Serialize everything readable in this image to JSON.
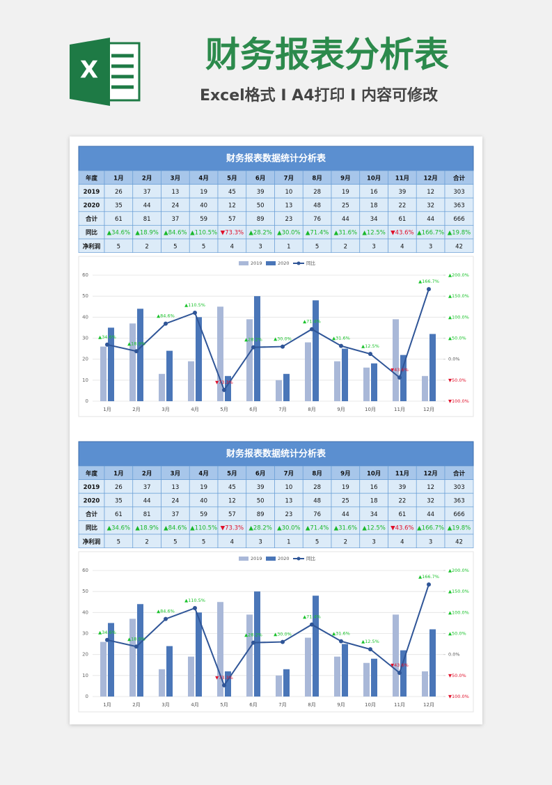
{
  "header": {
    "title": "财务报表分析表",
    "subtitle": "Excel格式 I A4打印 I 内容可修改"
  },
  "tables": [
    {
      "title": "财务报表数据统计分析表",
      "columns": [
        "年度",
        "1月",
        "2月",
        "3月",
        "4月",
        "5月",
        "6月",
        "7月",
        "8月",
        "9月",
        "10月",
        "11月",
        "12月",
        "合计"
      ],
      "rows": [
        [
          "2019",
          26,
          37,
          13,
          19,
          45,
          39,
          10,
          28,
          19,
          16,
          39,
          12,
          303
        ],
        [
          "2020",
          35,
          44,
          24,
          40,
          12,
          50,
          13,
          48,
          25,
          18,
          22,
          32,
          363
        ],
        [
          "合计",
          61,
          81,
          37,
          59,
          57,
          89,
          23,
          76,
          44,
          34,
          61,
          44,
          666
        ],
        [
          "同比",
          "▲34.6%",
          "▲18.9%",
          "▲84.6%",
          "▲110.5%",
          "▼73.3%",
          "▲28.2%",
          "▲30.0%",
          "▲71.4%",
          "▲31.6%",
          "▲12.5%",
          "▼43.6%",
          "▲166.7%",
          "▲19.8%"
        ],
        [
          "净利润",
          5,
          2,
          5,
          5,
          4,
          3,
          1,
          5,
          2,
          3,
          4,
          3,
          42
        ]
      ]
    },
    {
      "title": "财务报表数据统计分析表",
      "columns": [
        "年度",
        "1月",
        "2月",
        "3月",
        "4月",
        "5月",
        "6月",
        "7月",
        "8月",
        "9月",
        "10月",
        "11月",
        "12月",
        "合计"
      ],
      "rows": [
        [
          "2019",
          26,
          37,
          13,
          19,
          45,
          39,
          10,
          28,
          19,
          16,
          39,
          12,
          303
        ],
        [
          "2020",
          35,
          44,
          24,
          40,
          12,
          50,
          13,
          48,
          25,
          18,
          22,
          32,
          363
        ],
        [
          "合计",
          61,
          81,
          37,
          59,
          57,
          89,
          23,
          76,
          44,
          34,
          61,
          44,
          666
        ],
        [
          "同比",
          "▲34.6%",
          "▲18.9%",
          "▲84.6%",
          "▲110.5%",
          "▼73.3%",
          "▲28.2%",
          "▲30.0%",
          "▲71.4%",
          "▲31.6%",
          "▲12.5%",
          "▼43.6%",
          "▲166.7%",
          "▲19.8%"
        ],
        [
          "净利润",
          5,
          2,
          5,
          5,
          4,
          3,
          1,
          5,
          2,
          3,
          4,
          3,
          42
        ]
      ]
    }
  ],
  "chart_data": [
    {
      "type": "bar",
      "categories": [
        "1月",
        "2月",
        "3月",
        "4月",
        "5月",
        "6月",
        "7月",
        "8月",
        "9月",
        "10月",
        "11月",
        "12月"
      ],
      "series": [
        {
          "name": "2019",
          "color": "#a9b8d8",
          "values": [
            26,
            37,
            13,
            19,
            45,
            39,
            10,
            28,
            19,
            16,
            39,
            12
          ]
        },
        {
          "name": "2020",
          "color": "#4a76b8",
          "values": [
            35,
            44,
            24,
            40,
            12,
            50,
            13,
            48,
            25,
            18,
            22,
            32
          ]
        },
        {
          "name": "同比",
          "type": "line",
          "axis": "y2",
          "color": "#2f5597",
          "values": [
            34.6,
            18.9,
            84.6,
            110.5,
            -73.3,
            28.2,
            30.0,
            71.4,
            31.6,
            12.5,
            -43.6,
            166.7
          ],
          "value_labels": [
            "▲34.6%",
            "▲18.9%",
            "▲84.6%",
            "▲110.5%",
            "▼73.3%",
            "▲28.2%",
            "▲30.0%",
            "▲71.4%",
            "▲31.6%",
            "▲12.5%",
            "▼43.6%",
            "▲166.7%"
          ]
        }
      ],
      "ylim": [
        0,
        60
      ],
      "yticks": [
        0,
        10,
        20,
        30,
        40,
        50,
        60
      ],
      "y2lim": [
        -100,
        200
      ],
      "y2ticks": [
        {
          "value": -100,
          "label": "▼100.0%"
        },
        {
          "value": -50,
          "label": "▼50.0%"
        },
        {
          "value": 0,
          "label": "0.0%"
        },
        {
          "value": 50,
          "label": "▲50.0%"
        },
        {
          "value": 100,
          "label": "▲100.0%"
        },
        {
          "value": 150,
          "label": "▲150.0%"
        },
        {
          "value": 200,
          "label": "▲200.0%"
        }
      ],
      "grid": true,
      "legend": "top"
    },
    {
      "type": "bar",
      "categories": [
        "1月",
        "2月",
        "3月",
        "4月",
        "5月",
        "6月",
        "7月",
        "8月",
        "9月",
        "10月",
        "11月",
        "12月"
      ],
      "series": [
        {
          "name": "2019",
          "color": "#a9b8d8",
          "values": [
            26,
            37,
            13,
            19,
            45,
            39,
            10,
            28,
            19,
            16,
            39,
            12
          ]
        },
        {
          "name": "2020",
          "color": "#4a76b8",
          "values": [
            35,
            44,
            24,
            40,
            12,
            50,
            13,
            48,
            25,
            18,
            22,
            32
          ]
        },
        {
          "name": "同比",
          "type": "line",
          "axis": "y2",
          "color": "#2f5597",
          "values": [
            34.6,
            18.9,
            84.6,
            110.5,
            -73.3,
            28.2,
            30.0,
            71.4,
            31.6,
            12.5,
            -43.6,
            166.7
          ],
          "value_labels": [
            "▲34.6%",
            "▲18.9%",
            "▲84.6%",
            "▲110.5%",
            "▼73.3%",
            "▲28.2%",
            "▲30.0%",
            "▲71.4%",
            "▲31.6%",
            "▲12.5%",
            "▼43.6%",
            "▲166.7%"
          ]
        }
      ],
      "ylim": [
        0,
        60
      ],
      "yticks": [
        0,
        10,
        20,
        30,
        40,
        50,
        60
      ],
      "y2lim": [
        -100,
        200
      ],
      "y2ticks": [
        {
          "value": -100,
          "label": "▼100.0%"
        },
        {
          "value": -50,
          "label": "▼50.0%"
        },
        {
          "value": 0,
          "label": "0.0%"
        },
        {
          "value": 50,
          "label": "▲50.0%"
        },
        {
          "value": 100,
          "label": "▲100.0%"
        },
        {
          "value": 150,
          "label": "▲150.0%"
        },
        {
          "value": 200,
          "label": "▲200.0%"
        }
      ],
      "grid": true,
      "legend": "top"
    }
  ]
}
